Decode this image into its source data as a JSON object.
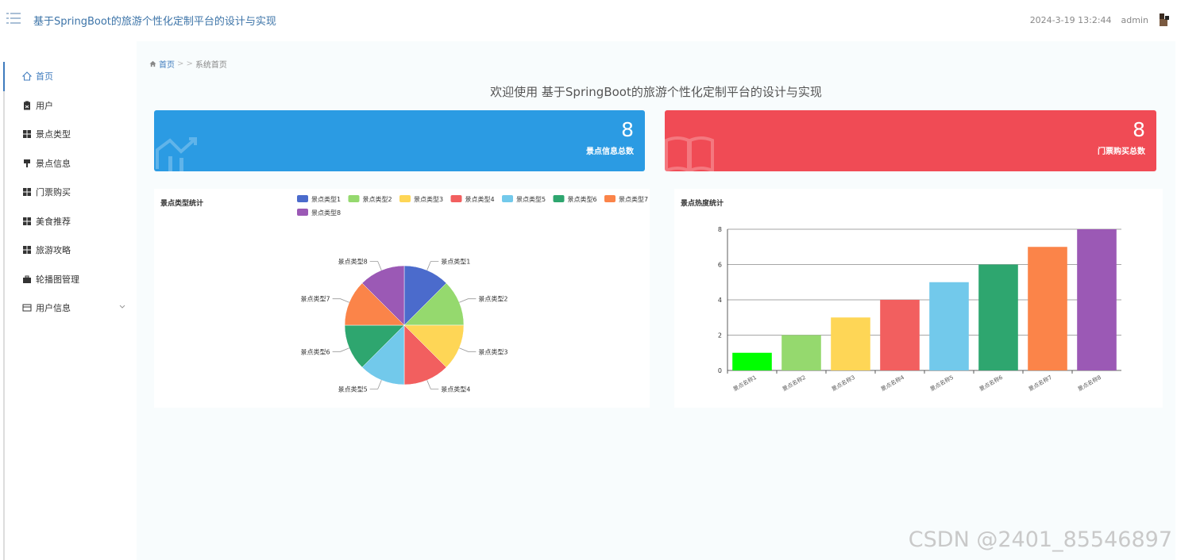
{
  "header": {
    "title": "基于SpringBoot的旅游个性化定制平台的设计与实现",
    "datetime": "2024-3-19 13:2:44",
    "user": "admin"
  },
  "sidebar": {
    "items": [
      {
        "label": "首页",
        "icon": "home-icon"
      },
      {
        "label": "用户",
        "icon": "clipboard-icon"
      },
      {
        "label": "景点类型",
        "icon": "grid-icon"
      },
      {
        "label": "景点信息",
        "icon": "pin-icon"
      },
      {
        "label": "门票购买",
        "icon": "grid-icon"
      },
      {
        "label": "美食推荐",
        "icon": "grid-icon"
      },
      {
        "label": "旅游攻略",
        "icon": "grid-icon"
      },
      {
        "label": "轮播图管理",
        "icon": "briefcase-icon"
      },
      {
        "label": "用户信息",
        "icon": "card-icon"
      }
    ]
  },
  "breadcrumb": {
    "home": "首页",
    "separator": "> >",
    "current": "系统首页"
  },
  "welcome": "欢迎使用 基于SpringBoot的旅游个性化定制平台的设计与实现",
  "cards": [
    {
      "value": "8",
      "label": "景点信息总数",
      "color": "#2b9be3"
    },
    {
      "value": "8",
      "label": "门票购买总数",
      "color": "#f04b55"
    }
  ],
  "panels": {
    "left_title": "景点类型统计",
    "right_title": "景点热度统计"
  },
  "chart_data": [
    {
      "type": "pie",
      "title": "景点类型统计",
      "legend_position": "top",
      "categories": [
        "景点类型1",
        "景点类型2",
        "景点类型3",
        "景点类型4",
        "景点类型5",
        "景点类型6",
        "景点类型7",
        "景点类型8"
      ],
      "values": [
        1,
        1,
        1,
        1,
        1,
        1,
        1,
        1
      ],
      "colors": [
        "#4b6bcc",
        "#95d96e",
        "#fed656",
        "#f25f5f",
        "#72c9eb",
        "#2ea66f",
        "#fb8449",
        "#9b59b5"
      ]
    },
    {
      "type": "bar",
      "title": "景点热度统计",
      "categories": [
        "景点名称1",
        "景点名称2",
        "景点名称3",
        "景点名称4",
        "景点名称5",
        "景点名称6",
        "景点名称7",
        "景点名称8"
      ],
      "values": [
        1,
        2,
        3,
        4,
        5,
        6,
        7,
        8
      ],
      "ylim": [
        0,
        8
      ],
      "yticks": [
        0,
        2,
        4,
        6,
        8
      ],
      "grid": true,
      "colors": [
        "#00ff00",
        "#95d96e",
        "#fed656",
        "#f25f5f",
        "#72c9eb",
        "#2ea66f",
        "#fb8449",
        "#9b59b5"
      ]
    }
  ],
  "watermark": "CSDN @2401_85546897"
}
